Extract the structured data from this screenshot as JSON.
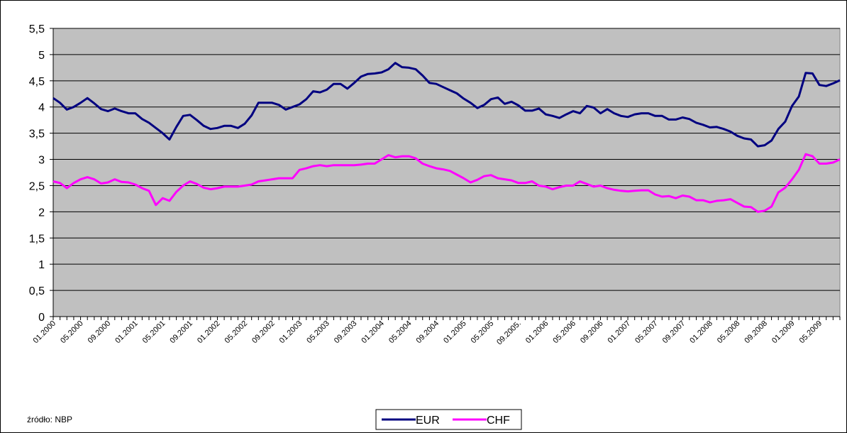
{
  "chart_data": {
    "type": "line",
    "source": "źródło: NBP",
    "categories": [
      "01.2000",
      null,
      null,
      null,
      "05.2000",
      null,
      null,
      null,
      "09.2000",
      null,
      null,
      null,
      "01.2001",
      null,
      null,
      null,
      "05.2001",
      null,
      null,
      null,
      "09.2001",
      null,
      null,
      null,
      "01.2002",
      null,
      null,
      null,
      "05.2002",
      null,
      null,
      null,
      "09.2002",
      null,
      null,
      null,
      "01.2003",
      null,
      null,
      null,
      "05.2003",
      null,
      null,
      null,
      "09.2003",
      null,
      null,
      null,
      "01.2004",
      null,
      null,
      null,
      "05.2004",
      null,
      null,
      null,
      "09.2004",
      null,
      null,
      null,
      "01.2005",
      null,
      null,
      null,
      "05.2005",
      null,
      null,
      null,
      "09.2005.",
      null,
      null,
      null,
      "01.2006",
      null,
      null,
      null,
      "05.2006",
      null,
      null,
      null,
      "09.2006",
      null,
      null,
      null,
      "01.2007",
      null,
      null,
      null,
      "05.2007",
      null,
      null,
      null,
      "09.2007",
      null,
      null,
      null,
      "01.2008",
      null,
      null,
      null,
      "05.2008",
      null,
      null,
      null,
      "09.2008",
      null,
      null,
      null,
      "01.2009",
      null,
      null,
      null,
      "05.2009",
      null,
      null,
      null
    ],
    "series": [
      {
        "name": "EUR",
        "color": "#000080",
        "values": [
          4.17,
          4.08,
          3.95,
          4.0,
          4.08,
          4.17,
          4.07,
          3.96,
          3.92,
          3.97,
          3.92,
          3.88,
          3.88,
          3.77,
          3.7,
          3.6,
          3.5,
          3.38,
          3.62,
          3.83,
          3.85,
          3.75,
          3.64,
          3.58,
          3.6,
          3.64,
          3.64,
          3.6,
          3.68,
          3.84,
          4.08,
          4.08,
          4.08,
          4.04,
          3.95,
          4.0,
          4.05,
          4.15,
          4.3,
          4.28,
          4.33,
          4.44,
          4.44,
          4.35,
          4.46,
          4.58,
          4.63,
          4.64,
          4.66,
          4.72,
          4.84,
          4.76,
          4.75,
          4.72,
          4.6,
          4.46,
          4.44,
          4.38,
          4.32,
          4.26,
          4.16,
          4.08,
          3.98,
          4.04,
          4.15,
          4.18,
          4.06,
          4.1,
          4.03,
          3.93,
          3.93,
          3.97,
          3.86,
          3.83,
          3.79,
          3.86,
          3.92,
          3.88,
          4.02,
          3.99,
          3.88,
          3.96,
          3.88,
          3.83,
          3.81,
          3.86,
          3.88,
          3.88,
          3.83,
          3.83,
          3.76,
          3.76,
          3.8,
          3.77,
          3.7,
          3.66,
          3.61,
          3.62,
          3.58,
          3.53,
          3.45,
          3.4,
          3.38,
          3.25,
          3.27,
          3.36,
          3.58,
          3.72,
          4.02,
          4.2,
          4.65,
          4.64,
          4.42,
          4.4,
          4.45,
          4.51
        ]
      },
      {
        "name": "CHF",
        "color": "#ff00ff",
        "values": [
          2.58,
          2.55,
          2.45,
          2.55,
          2.62,
          2.66,
          2.62,
          2.54,
          2.56,
          2.62,
          2.57,
          2.56,
          2.52,
          2.45,
          2.4,
          2.13,
          2.26,
          2.21,
          2.38,
          2.5,
          2.58,
          2.53,
          2.46,
          2.43,
          2.45,
          2.48,
          2.48,
          2.48,
          2.5,
          2.52,
          2.58,
          2.6,
          2.62,
          2.64,
          2.64,
          2.64,
          2.8,
          2.83,
          2.87,
          2.89,
          2.87,
          2.89,
          2.89,
          2.89,
          2.89,
          2.9,
          2.92,
          2.92,
          3.0,
          3.08,
          3.04,
          3.06,
          3.06,
          3.02,
          2.92,
          2.87,
          2.83,
          2.81,
          2.78,
          2.71,
          2.64,
          2.56,
          2.61,
          2.68,
          2.7,
          2.64,
          2.62,
          2.6,
          2.55,
          2.55,
          2.58,
          2.5,
          2.48,
          2.43,
          2.47,
          2.5,
          2.5,
          2.58,
          2.53,
          2.48,
          2.5,
          2.45,
          2.42,
          2.4,
          2.39,
          2.4,
          2.41,
          2.41,
          2.33,
          2.29,
          2.3,
          2.26,
          2.31,
          2.29,
          2.22,
          2.22,
          2.18,
          2.21,
          2.22,
          2.24,
          2.17,
          2.1,
          2.09,
          2.0,
          2.02,
          2.1,
          2.37,
          2.46,
          2.62,
          2.8,
          3.1,
          3.06,
          2.92,
          2.92,
          2.94,
          3.0
        ]
      }
    ],
    "ylim": [
      0,
      5.5
    ],
    "yticks": [
      0,
      {
        "value": 0.5,
        "label": "0,5"
      },
      1,
      {
        "value": 1.5,
        "label": "1,5"
      },
      2,
      {
        "value": 2.5,
        "label": "2,5"
      },
      3,
      {
        "value": 3.5,
        "label": "3,5"
      },
      4,
      {
        "value": 4.5,
        "label": "4,5"
      },
      5,
      {
        "value": 5.5,
        "label": "5,5"
      }
    ],
    "grid": true,
    "plot_background": "#c0c0c0",
    "legend": "bottom"
  }
}
